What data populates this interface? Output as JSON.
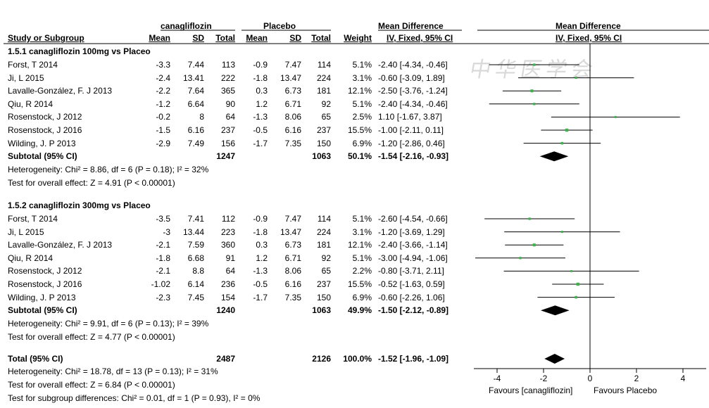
{
  "header": {
    "group1": "canagliflozin",
    "group2": "Placebo",
    "md_title": "Mean Difference",
    "md_method": "IV, Fixed, 95% CI",
    "plot_title": "Mean Difference",
    "plot_method": "IV, Fixed, 95% CI",
    "study": "Study or Subgroup",
    "mean": "Mean",
    "sd": "SD",
    "total": "Total",
    "weight": "Weight"
  },
  "watermark": "中华医学会",
  "subgroups": [
    {
      "title": "1.5.1 canagliflozin 100mg vs Placeo",
      "rows": [
        {
          "study": "Forst, T 2014",
          "m1": "-3.3",
          "sd1": "7.44",
          "n1": "113",
          "m2": "-0.9",
          "sd2": "7.47",
          "n2": "114",
          "w": "5.1%",
          "ci": "-2.40 [-4.34, -0.46]"
        },
        {
          "study": "Ji, L 2015",
          "m1": "-2.4",
          "sd1": "13.41",
          "n1": "222",
          "m2": "-1.8",
          "sd2": "13.47",
          "n2": "224",
          "w": "3.1%",
          "ci": "-0.60 [-3.09, 1.89]"
        },
        {
          "study": "Lavalle-González, F. J 2013",
          "m1": "-2.2",
          "sd1": "7.64",
          "n1": "365",
          "m2": "0.3",
          "sd2": "6.73",
          "n2": "181",
          "w": "12.1%",
          "ci": "-2.50 [-3.76, -1.24]"
        },
        {
          "study": "Qiu, R 2014",
          "m1": "-1.2",
          "sd1": "6.64",
          "n1": "90",
          "m2": "1.2",
          "sd2": "6.71",
          "n2": "92",
          "w": "5.1%",
          "ci": "-2.40 [-4.34, -0.46]"
        },
        {
          "study": "Rosenstock, J 2012",
          "m1": "-0.2",
          "sd1": "8",
          "n1": "64",
          "m2": "-1.3",
          "sd2": "8.06",
          "n2": "65",
          "w": "2.5%",
          "ci": "1.10 [-1.67, 3.87]"
        },
        {
          "study": "Rosenstock, J 2016",
          "m1": "-1.5",
          "sd1": "6.16",
          "n1": "237",
          "m2": "-0.5",
          "sd2": "6.16",
          "n2": "237",
          "w": "15.5%",
          "ci": "-1.00 [-2.11, 0.11]"
        },
        {
          "study": "Wilding, J. P 2013",
          "m1": "-2.9",
          "sd1": "7.49",
          "n1": "156",
          "m2": "-1.7",
          "sd2": "7.35",
          "n2": "150",
          "w": "6.9%",
          "ci": "-1.20 [-2.86, 0.46]"
        }
      ],
      "subtotal": {
        "label": "Subtotal (95% CI)",
        "n1": "1247",
        "n2": "1063",
        "w": "50.1%",
        "ci": "-1.54 [-2.16, -0.93]"
      },
      "heterogeneity": "Heterogeneity: Chi² = 8.86, df = 6 (P = 0.18); I² = 32%",
      "overall": "Test for overall effect: Z = 4.91 (P < 0.00001)"
    },
    {
      "title": "1.5.2 canagliflozin 300mg vs Placeo",
      "rows": [
        {
          "study": "Forst, T 2014",
          "m1": "-3.5",
          "sd1": "7.41",
          "n1": "112",
          "m2": "-0.9",
          "sd2": "7.47",
          "n2": "114",
          "w": "5.1%",
          "ci": "-2.60 [-4.54, -0.66]"
        },
        {
          "study": "Ji, L 2015",
          "m1": "-3",
          "sd1": "13.44",
          "n1": "223",
          "m2": "-1.8",
          "sd2": "13.47",
          "n2": "224",
          "w": "3.1%",
          "ci": "-1.20 [-3.69, 1.29]"
        },
        {
          "study": "Lavalle-González, F. J 2013",
          "m1": "-2.1",
          "sd1": "7.59",
          "n1": "360",
          "m2": "0.3",
          "sd2": "6.73",
          "n2": "181",
          "w": "12.1%",
          "ci": "-2.40 [-3.66, -1.14]"
        },
        {
          "study": "Qiu, R 2014",
          "m1": "-1.8",
          "sd1": "6.68",
          "n1": "91",
          "m2": "1.2",
          "sd2": "6.71",
          "n2": "92",
          "w": "5.1%",
          "ci": "-3.00 [-4.94, -1.06]"
        },
        {
          "study": "Rosenstock, J 2012",
          "m1": "-2.1",
          "sd1": "8.8",
          "n1": "64",
          "m2": "-1.3",
          "sd2": "8.06",
          "n2": "65",
          "w": "2.2%",
          "ci": "-0.80 [-3.71, 2.11]"
        },
        {
          "study": "Rosenstock, J 2016",
          "m1": "-1.02",
          "sd1": "6.14",
          "n1": "236",
          "m2": "-0.5",
          "sd2": "6.16",
          "n2": "237",
          "w": "15.5%",
          "ci": "-0.52 [-1.63, 0.59]"
        },
        {
          "study": "Wilding, J. P 2013",
          "m1": "-2.3",
          "sd1": "7.45",
          "n1": "154",
          "m2": "-1.7",
          "sd2": "7.35",
          "n2": "150",
          "w": "6.9%",
          "ci": "-0.60 [-2.26, 1.06]"
        }
      ],
      "subtotal": {
        "label": "Subtotal (95% CI)",
        "n1": "1240",
        "n2": "1063",
        "w": "49.9%",
        "ci": "-1.50 [-2.12, -0.89]"
      },
      "heterogeneity": "Heterogeneity: Chi² = 9.91, df = 6 (P = 0.13); I² = 39%",
      "overall": "Test for overall effect: Z = 4.77 (P < 0.00001)"
    }
  ],
  "total": {
    "label": "Total (95% CI)",
    "n1": "2487",
    "n2": "2126",
    "w": "100.0%",
    "ci": "-1.52 [-1.96, -1.09]"
  },
  "total_heterogeneity": "Heterogeneity: Chi² = 18.78, df = 13 (P = 0.13); I² = 31%",
  "total_overall": "Test for overall effect: Z = 6.84 (P < 0.00001)",
  "subgroup_diff": "Test for subgroup differences: Chi² = 0.01, df = 1 (P = 0.93), I² = 0%",
  "axis": {
    "favours_left": "Favours [canagliflozin]",
    "favours_right": "Favours Placebo"
  },
  "colors": {
    "point": "#3cb44b",
    "line": "#000000",
    "diamond": "#000000"
  },
  "chart_data": {
    "type": "forest",
    "xlim": [
      -5,
      5
    ],
    "xticks": [
      -4,
      -2,
      0,
      2,
      4
    ],
    "points": [
      {
        "group": "1.5.1",
        "study": "Forst, T 2014",
        "md": -2.4,
        "lo": -4.34,
        "hi": -0.46,
        "weight": 5.1
      },
      {
        "group": "1.5.1",
        "study": "Ji, L 2015",
        "md": -0.6,
        "lo": -3.09,
        "hi": 1.89,
        "weight": 3.1
      },
      {
        "group": "1.5.1",
        "study": "Lavalle-González, F. J 2013",
        "md": -2.5,
        "lo": -3.76,
        "hi": -1.24,
        "weight": 12.1
      },
      {
        "group": "1.5.1",
        "study": "Qiu, R 2014",
        "md": -2.4,
        "lo": -4.34,
        "hi": -0.46,
        "weight": 5.1
      },
      {
        "group": "1.5.1",
        "study": "Rosenstock, J 2012",
        "md": 1.1,
        "lo": -1.67,
        "hi": 3.87,
        "weight": 2.5
      },
      {
        "group": "1.5.1",
        "study": "Rosenstock, J 2016",
        "md": -1.0,
        "lo": -2.11,
        "hi": 0.11,
        "weight": 15.5
      },
      {
        "group": "1.5.1",
        "study": "Wilding, J. P 2013",
        "md": -1.2,
        "lo": -2.86,
        "hi": 0.46,
        "weight": 6.9
      },
      {
        "group": "1.5.2",
        "study": "Forst, T 2014",
        "md": -2.6,
        "lo": -4.54,
        "hi": -0.66,
        "weight": 5.1
      },
      {
        "group": "1.5.2",
        "study": "Ji, L 2015",
        "md": -1.2,
        "lo": -3.69,
        "hi": 1.29,
        "weight": 3.1
      },
      {
        "group": "1.5.2",
        "study": "Lavalle-González, F. J 2013",
        "md": -2.4,
        "lo": -3.66,
        "hi": -1.14,
        "weight": 12.1
      },
      {
        "group": "1.5.2",
        "study": "Qiu, R 2014",
        "md": -3.0,
        "lo": -4.94,
        "hi": -1.06,
        "weight": 5.1
      },
      {
        "group": "1.5.2",
        "study": "Rosenstock, J 2012",
        "md": -0.8,
        "lo": -3.71,
        "hi": 2.11,
        "weight": 2.2
      },
      {
        "group": "1.5.2",
        "study": "Rosenstock, J 2016",
        "md": -0.52,
        "lo": -1.63,
        "hi": 0.59,
        "weight": 15.5
      },
      {
        "group": "1.5.2",
        "study": "Wilding, J. P 2013",
        "md": -0.6,
        "lo": -2.26,
        "hi": 1.06,
        "weight": 6.9
      }
    ],
    "diamonds": [
      {
        "label": "Subtotal 1.5.1",
        "md": -1.54,
        "lo": -2.16,
        "hi": -0.93
      },
      {
        "label": "Subtotal 1.5.2",
        "md": -1.5,
        "lo": -2.12,
        "hi": -0.89
      },
      {
        "label": "Total",
        "md": -1.52,
        "lo": -1.96,
        "hi": -1.09
      }
    ]
  }
}
